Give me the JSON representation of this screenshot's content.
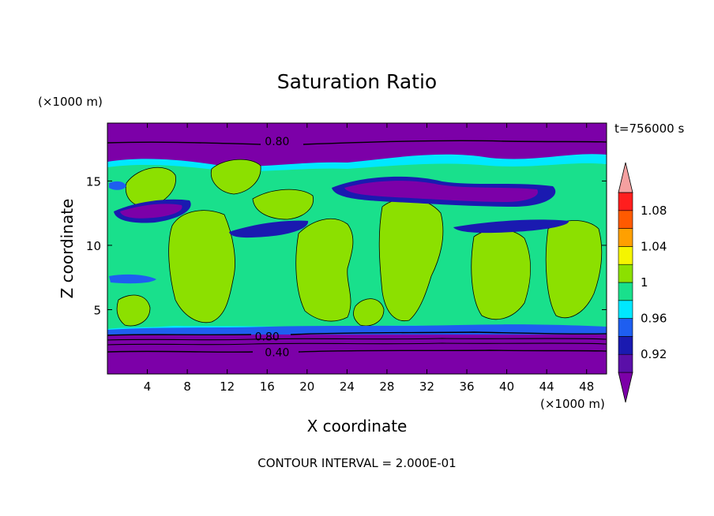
{
  "chart_data": {
    "type": "heatmap",
    "title": "Saturation Ratio",
    "xlabel": "X coordinate",
    "ylabel": "Z coordinate",
    "x_units": "(×1000 m)",
    "y_units": "(×1000 m)",
    "time_label": "t=756000 s",
    "footer": "CONTOUR INTERVAL = 2.000E-01",
    "xlim": [
      0,
      50
    ],
    "ylim": [
      0,
      19.5
    ],
    "x_ticks": [
      "4",
      "8",
      "12",
      "16",
      "20",
      "24",
      "28",
      "32",
      "36",
      "40",
      "44",
      "48"
    ],
    "y_ticks": [
      "5",
      "10",
      "15"
    ],
    "contour_labels": [
      {
        "text": "0.80",
        "x": 17,
        "z": 18.1
      },
      {
        "text": "0.80",
        "x": 16,
        "z": 2.9
      },
      {
        "text": "0.40",
        "x": 17,
        "z": 1.7
      }
    ],
    "colorbar": {
      "tick_labels": [
        "0.92",
        "0.96",
        "1",
        "1.04",
        "1.08"
      ],
      "tick_values": [
        0.92,
        0.96,
        1.0,
        1.04,
        1.08
      ],
      "levels": [
        {
          "range": "<0.90",
          "color": "#7c00a8"
        },
        {
          "range": "0.90-0.92",
          "color": "#5a0fa8"
        },
        {
          "range": "0.92-0.94",
          "color": "#1a1ab0"
        },
        {
          "range": "0.94-0.96",
          "color": "#1e5ef0"
        },
        {
          "range": "0.96-0.98",
          "color": "#00e8ff"
        },
        {
          "range": "0.98-1.00",
          "color": "#19e08c"
        },
        {
          "range": "1.00-1.02",
          "color": "#8ce000"
        },
        {
          "range": "1.02-1.04",
          "color": "#f5f500"
        },
        {
          "range": "1.04-1.06",
          "color": "#ffa000"
        },
        {
          "range": "1.06-1.08",
          "color": "#ff5a00"
        },
        {
          "range": "1.08-1.10",
          "color": "#ff1e1e"
        },
        {
          "range": ">1.10",
          "color": "#f5a0a0"
        }
      ]
    }
  }
}
